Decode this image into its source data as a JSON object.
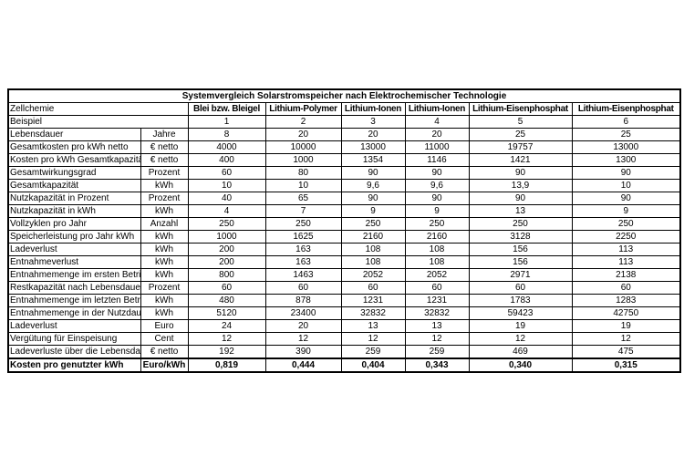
{
  "colors": {
    "background": "#ffffff",
    "border": "#000000",
    "text": "#000000"
  },
  "chart_data": {
    "type": "table",
    "title": "Systemvergleich Solarstromspeicher nach Elektrochemischer Technologie",
    "row_header_label": "Zellchemie",
    "columns": [
      "Blei bzw. Bleigel",
      "Lithium-Polymer",
      "Lithium-Ionen",
      "Lithium-Ionen",
      "Lithium-Eisenphosphat",
      "Lithium-Eisenphosphat"
    ],
    "rows": [
      {
        "label": "Beispiel",
        "unit": null,
        "values": [
          "1",
          "2",
          "3",
          "4",
          "5",
          "6"
        ]
      },
      {
        "label": "Lebensdauer",
        "unit": "Jahre",
        "values": [
          "8",
          "20",
          "20",
          "20",
          "25",
          "25"
        ]
      },
      {
        "label": "Gesamtkosten pro kWh netto",
        "unit": "€ netto",
        "values": [
          "4000",
          "10000",
          "13000",
          "11000",
          "19757",
          "13000"
        ]
      },
      {
        "label": "Kosten pro kWh Gesamtkapazität",
        "unit": "€ netto",
        "values": [
          "400",
          "1000",
          "1354",
          "1146",
          "1421",
          "1300"
        ]
      },
      {
        "label": "Gesamtwirkungsgrad",
        "unit": "Prozent",
        "values": [
          "60",
          "80",
          "90",
          "90",
          "90",
          "90"
        ]
      },
      {
        "label": "Gesamtkapazität",
        "unit": "kWh",
        "values": [
          "10",
          "10",
          "9,6",
          "9,6",
          "13,9",
          "10"
        ]
      },
      {
        "label": "Nutzkapazität in Prozent",
        "unit": "Prozent",
        "values": [
          "40",
          "65",
          "90",
          "90",
          "90",
          "90"
        ]
      },
      {
        "label": "Nutzkapazität in kWh",
        "unit": "kWh",
        "values": [
          "4",
          "7",
          "9",
          "9",
          "13",
          "9"
        ]
      },
      {
        "label": "Vollzyklen pro Jahr",
        "unit": "Anzahl",
        "values": [
          "250",
          "250",
          "250",
          "250",
          "250",
          "250"
        ]
      },
      {
        "label": "Speicherleistung pro Jahr kWh",
        "unit": "kWh",
        "values": [
          "1000",
          "1625",
          "2160",
          "2160",
          "3128",
          "2250"
        ]
      },
      {
        "label": "Ladeverlust",
        "unit": "kWh",
        "values": [
          "200",
          "163",
          "108",
          "108",
          "156",
          "113"
        ]
      },
      {
        "label": "Entnahmeverlust",
        "unit": "kWh",
        "values": [
          "200",
          "163",
          "108",
          "108",
          "156",
          "113"
        ]
      },
      {
        "label": "Entnahmemenge im ersten Betriebs",
        "unit": "kWh",
        "values": [
          "800",
          "1463",
          "2052",
          "2052",
          "2971",
          "2138"
        ]
      },
      {
        "label": "Restkapazität nach Lebensdauer",
        "unit": "Prozent",
        "values": [
          "60",
          "60",
          "60",
          "60",
          "60",
          "60"
        ]
      },
      {
        "label": "Entnahmemenge im letzten Betrieb",
        "unit": "kWh",
        "values": [
          "480",
          "878",
          "1231",
          "1231",
          "1783",
          "1283"
        ]
      },
      {
        "label": "Entnahmemenge in der Nutzdauer",
        "unit": "kWh",
        "values": [
          "5120",
          "23400",
          "32832",
          "32832",
          "59423",
          "42750"
        ]
      },
      {
        "label": "Ladeverlust",
        "unit": "Euro",
        "values": [
          "24",
          "20",
          "13",
          "13",
          "19",
          "19"
        ]
      },
      {
        "label": "Vergütung für Einspeisung",
        "unit": "Cent",
        "values": [
          "12",
          "12",
          "12",
          "12",
          "12",
          "12"
        ]
      },
      {
        "label": "Ladeverluste über die Lebensdauer",
        "unit": "€ netto",
        "values": [
          "192",
          "390",
          "259",
          "259",
          "469",
          "475"
        ]
      },
      {
        "label": "Kosten pro genutzter kWh",
        "unit": "Euro/kWh",
        "values": [
          "0,819",
          "0,444",
          "0,404",
          "0,343",
          "0,340",
          "0,315"
        ],
        "bold": true
      }
    ]
  }
}
